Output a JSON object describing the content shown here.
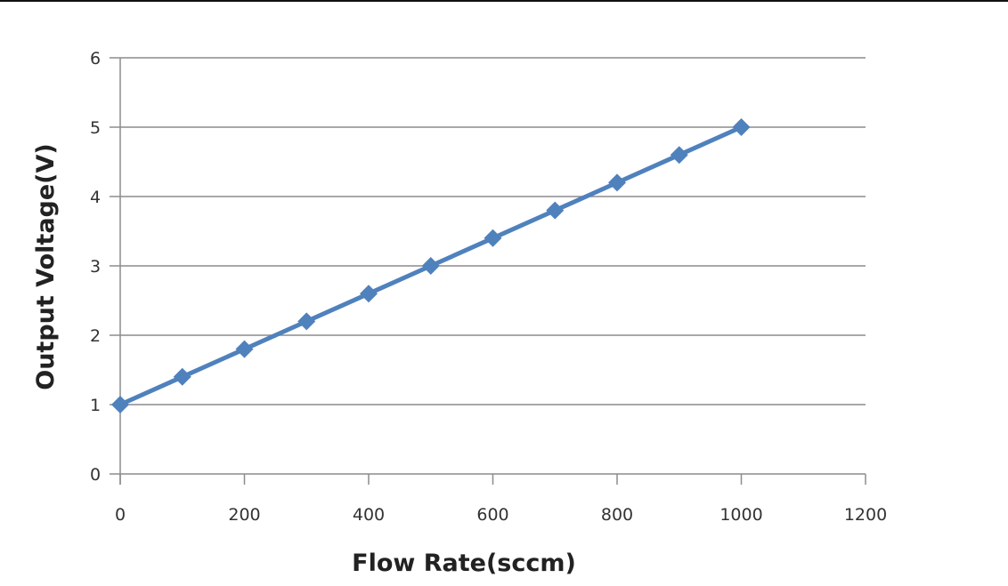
{
  "chart_data": {
    "type": "line",
    "title": "",
    "xlabel": "Flow Rate(sccm)",
    "ylabel": "Output Voltage(V)",
    "xlim": [
      0,
      1200
    ],
    "ylim": [
      0,
      6
    ],
    "xticks": [
      0,
      200,
      400,
      600,
      800,
      1000,
      1200
    ],
    "yticks": [
      0,
      1,
      2,
      3,
      4,
      5,
      6
    ],
    "grid": "horizontal",
    "legend": "none",
    "series": [
      {
        "name": "Output Voltage",
        "color": "#4f81bd",
        "marker": "diamond",
        "x": [
          0,
          100,
          200,
          300,
          400,
          500,
          600,
          700,
          800,
          900,
          1000
        ],
        "y": [
          1.0,
          1.4,
          1.8,
          2.2,
          2.6,
          3.0,
          3.4,
          3.8,
          4.2,
          4.6,
          5.0
        ]
      }
    ]
  }
}
